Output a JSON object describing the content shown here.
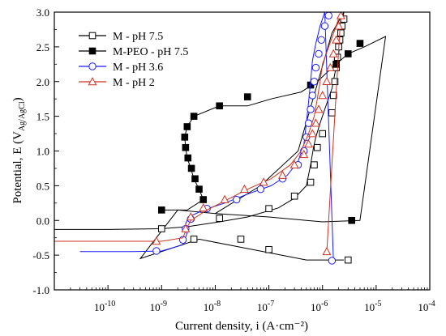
{
  "chart_data": {
    "type": "line",
    "xlabel": "Current density, i (A·cm⁻²)",
    "ylabel_main": "Potential, E (V",
    "ylabel_sub": "Ag/AgCl",
    "ylabel_close": ")",
    "x_scale": "log",
    "xlim": [
      1e-11,
      0.0001
    ],
    "ylim": [
      -1.0,
      3.0
    ],
    "x_ticks": [
      {
        "exp": -10,
        "label_base": "10",
        "label_exp": "-10"
      },
      {
        "exp": -9,
        "label_base": "10",
        "label_exp": "-9"
      },
      {
        "exp": -8,
        "label_base": "10",
        "label_exp": "-8"
      },
      {
        "exp": -7,
        "label_base": "10",
        "label_exp": "-7"
      },
      {
        "exp": -6,
        "label_base": "10",
        "label_exp": "-6"
      },
      {
        "exp": -5,
        "label_base": "10",
        "label_exp": "-5"
      },
      {
        "exp": -4,
        "label_base": "10",
        "label_exp": "-4"
      }
    ],
    "y_ticks": [
      {
        "value": -1.0,
        "label": "-1.0"
      },
      {
        "value": -0.5,
        "label": "-0.5"
      },
      {
        "value": 0.0,
        "label": "0.0"
      },
      {
        "value": 0.5,
        "label": "0.5"
      },
      {
        "value": 1.0,
        "label": "1.0"
      },
      {
        "value": 1.5,
        "label": "1.5"
      },
      {
        "value": 2.0,
        "label": "2.0"
      },
      {
        "value": 2.5,
        "label": "2.5"
      },
      {
        "value": 3.0,
        "label": "3.0"
      }
    ],
    "grid": false,
    "legend_position": "top-left",
    "series": [
      {
        "name": "M - pH 7.5",
        "color": "#000000",
        "marker": "square-open",
        "x": [
          1e-11,
          1e-10,
          1e-09,
          3e-09,
          1.2e-08,
          4e-08,
          1.5e-07,
          3e-07,
          5e-07,
          6e-07,
          6.8e-07,
          7.5e-07,
          9e-07,
          1.1e-06,
          1.5e-06,
          2e-06,
          2.5e-06,
          1.5e-06,
          3.5e-07,
          7e-08,
          1e-08,
          2e-09,
          4e-10,
          5e-09,
          5e-08,
          5e-07,
          1.5e-06,
          2.5e-06
        ],
        "y": [
          -0.13,
          -0.13,
          -0.12,
          -0.09,
          -0.02,
          0.05,
          0.18,
          0.32,
          0.5,
          0.8,
          1.05,
          1.2,
          1.4,
          1.6,
          1.9,
          2.4,
          3.0,
          2.7,
          1.0,
          0.5,
          0.1,
          0.15,
          -0.55,
          -0.27,
          -0.42,
          -0.57,
          -0.57,
          -0.57
        ],
        "marker_x": [
          1e-09,
          1.2e-08,
          1e-07,
          3e-07,
          6e-07,
          7e-07,
          8e-07,
          1e-06,
          1.5e-06,
          1.6e-06,
          1.7e-06,
          1.8e-06,
          1.9e-06,
          2e-06,
          2.1e-06,
          2.2e-06,
          2.3e-06,
          2.5e-06,
          3e-08,
          4e-09,
          1e-07,
          3e-06
        ],
        "marker_y": [
          -0.12,
          0.03,
          0.17,
          0.35,
          0.55,
          0.8,
          1.05,
          1.25,
          1.55,
          1.8,
          2.0,
          2.2,
          2.35,
          2.5,
          2.6,
          2.7,
          2.8,
          2.9,
          -0.27,
          -0.27,
          -0.42,
          -0.57
        ]
      },
      {
        "name": "M-PEO - pH 7.5",
        "color": "#000000",
        "marker": "square-filled",
        "x": [
          1e-09,
          3e-09,
          6e-09,
          5e-09,
          4e-09,
          3.5e-09,
          3e-09,
          2.8e-09,
          2.7e-09,
          3e-09,
          4e-09,
          1.2e-08,
          4e-08,
          1.1e-07,
          4e-07,
          8e-07,
          1.5e-06,
          3e-06,
          6e-06,
          1.5e-05,
          5e-06,
          1e-06,
          1e-07,
          1e-08
        ],
        "y": [
          0.15,
          0.15,
          0.3,
          0.45,
          0.6,
          0.75,
          0.9,
          1.05,
          1.2,
          1.35,
          1.5,
          1.65,
          1.65,
          1.75,
          1.85,
          2.0,
          2.2,
          2.4,
          2.5,
          2.65,
          0.0,
          -0.02,
          0.05,
          0.1
        ],
        "marker_x": [
          1e-09,
          6e-09,
          5e-09,
          4.2e-09,
          3.6e-09,
          3.1e-09,
          2.8e-09,
          2.7e-09,
          3e-09,
          4e-09,
          1.2e-08,
          4e-08,
          6e-07,
          1.8e-06,
          3e-06,
          5e-06,
          3.5e-06
        ],
        "marker_y": [
          0.15,
          0.3,
          0.45,
          0.6,
          0.75,
          0.9,
          1.05,
          1.2,
          1.35,
          1.5,
          1.65,
          1.78,
          1.95,
          2.25,
          2.4,
          2.55,
          0.0
        ]
      },
      {
        "name": "M - pH 3.6",
        "color": "#1a1aff",
        "marker": "circle-open",
        "x": [
          3e-11,
          3e-10,
          1e-09,
          2.5e-09,
          3e-09,
          2.8e-09,
          3.2e-09,
          6e-09,
          1.5e-08,
          4e-08,
          1.1e-07,
          2.2e-07,
          3.5e-07,
          4.5e-07,
          5e-07,
          5.5e-07,
          6e-07,
          6.5e-07,
          7.5e-07,
          9e-07,
          1.1e-06,
          1.6e-06
        ],
        "y": [
          -0.45,
          -0.45,
          -0.44,
          -0.35,
          -0.18,
          -0.05,
          0.05,
          0.15,
          0.25,
          0.38,
          0.5,
          0.65,
          0.85,
          1.1,
          1.4,
          1.7,
          2.0,
          2.3,
          2.55,
          2.8,
          3.0,
          -0.58
        ],
        "marker_x": [
          8e-10,
          2.5e-09,
          2.8e-09,
          3.5e-09,
          7e-09,
          2.5e-08,
          7e-08,
          1.8e-07,
          3.5e-07,
          4.5e-07,
          5e-07,
          5.5e-07,
          6e-07,
          6.5e-07,
          7e-07,
          7.5e-07,
          8.5e-07,
          9.5e-07,
          1.1e-06,
          1.3e-06,
          1.5e-06
        ],
        "marker_y": [
          -0.44,
          -0.28,
          -0.12,
          0.02,
          0.17,
          0.3,
          0.45,
          0.6,
          0.8,
          1.0,
          1.2,
          1.4,
          1.6,
          1.8,
          2.0,
          2.2,
          2.4,
          2.6,
          2.8,
          2.95,
          -0.58
        ]
      },
      {
        "name": "M - pH 2",
        "color": "#cc3322",
        "marker": "triangle-open",
        "x": [
          1e-11,
          1e-10,
          1e-09,
          2.5e-09,
          3e-09,
          3.5e-09,
          7e-09,
          1.5e-08,
          4e-08,
          1.1e-07,
          2.5e-07,
          4e-07,
          5.5e-07,
          7e-07,
          8e-07,
          9e-07,
          1e-06,
          1.3e-06,
          1.7e-06,
          2.2e-06,
          1.2e-06
        ],
        "y": [
          -0.3,
          -0.3,
          -0.3,
          -0.25,
          -0.1,
          0.0,
          0.15,
          0.28,
          0.45,
          0.6,
          0.8,
          1.0,
          1.25,
          1.5,
          1.75,
          2.0,
          2.25,
          2.5,
          2.75,
          3.0,
          -0.45
        ],
        "marker_x": [
          8e-10,
          2.8e-09,
          3.5e-09,
          6e-09,
          1.5e-08,
          3.5e-08,
          8e-08,
          1.8e-07,
          3e-07,
          4.5e-07,
          5.5e-07,
          6.5e-07,
          7.5e-07,
          8.5e-07,
          1e-06,
          1.2e-06,
          1.4e-06,
          1.6e-06,
          1.8e-06,
          2e-06,
          2.2e-06,
          1.2e-06
        ],
        "marker_y": [
          -0.3,
          -0.12,
          0.05,
          0.18,
          0.3,
          0.45,
          0.55,
          0.65,
          0.8,
          0.95,
          1.1,
          1.25,
          1.4,
          1.6,
          1.8,
          2.0,
          2.2,
          2.4,
          2.6,
          2.8,
          2.95,
          -0.45
        ]
      }
    ]
  }
}
